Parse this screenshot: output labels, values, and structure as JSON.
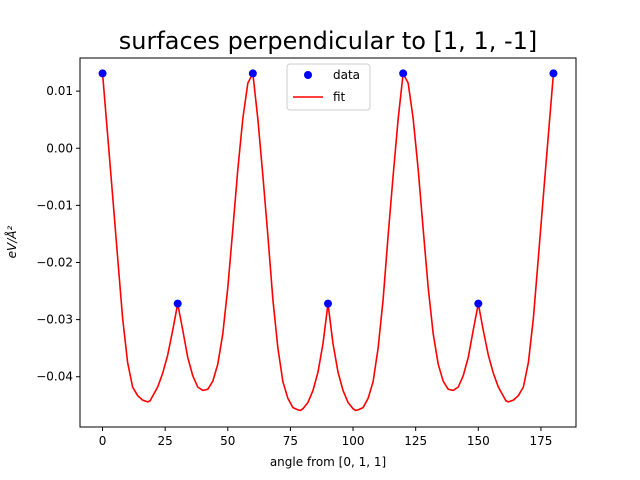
{
  "chart_data": {
    "type": "scatter",
    "title": "surfaces perpendicular to [1, 1, -1]",
    "xlabel": "angle from [0, 1, 1]",
    "ylabel": "eV/Å²",
    "xlim": [
      -9,
      189
    ],
    "ylim": [
      -0.0488,
      0.0158
    ],
    "xticks": [
      0,
      25,
      50,
      75,
      100,
      125,
      150,
      175
    ],
    "yticks": [
      0.01,
      0.0,
      -0.01,
      -0.02,
      -0.03,
      -0.04
    ],
    "ytick_labels": [
      "0.01",
      "0.00",
      "−0.01",
      "−0.02",
      "−0.03",
      "−0.04"
    ],
    "grid": false,
    "legend_position": "top-center",
    "series": [
      {
        "name": "data",
        "kind": "scatter",
        "color": "#0000ff",
        "x": [
          0,
          30,
          60,
          90,
          120,
          150,
          180
        ],
        "y": [
          0.0131,
          -0.0272,
          0.0131,
          -0.0272,
          0.0131,
          -0.0272,
          0.0131
        ]
      },
      {
        "name": "fit",
        "kind": "line",
        "color": "#ff0000",
        "x": [
          0,
          2,
          4,
          6,
          8,
          10,
          12,
          14,
          16,
          18,
          19,
          20,
          22,
          24,
          26,
          28,
          30,
          32,
          34,
          36,
          38,
          40,
          42,
          44,
          46,
          48,
          50,
          52,
          54,
          56,
          58,
          60,
          62,
          64,
          66,
          68,
          70,
          72,
          74,
          76,
          78,
          79,
          80,
          82,
          84,
          86,
          88,
          90,
          92,
          94,
          96,
          98,
          100,
          101,
          102,
          104,
          106,
          108,
          110,
          112,
          114,
          116,
          118,
          120,
          122,
          124,
          126,
          128,
          130,
          132,
          134,
          136,
          138,
          140,
          142,
          144,
          146,
          148,
          150,
          152,
          154,
          156,
          158,
          160,
          161,
          162,
          164,
          166,
          168,
          170,
          172,
          174,
          176,
          178,
          180
        ],
        "y": [
          0.0131,
          0.0025,
          -0.0082,
          -0.019,
          -0.0297,
          -0.0375,
          -0.0418,
          -0.0433,
          -0.0441,
          -0.0444,
          -0.0442,
          -0.0434,
          -0.0418,
          -0.0394,
          -0.0362,
          -0.0319,
          -0.0272,
          -0.0318,
          -0.0366,
          -0.0398,
          -0.0418,
          -0.0424,
          -0.0422,
          -0.0408,
          -0.0378,
          -0.0325,
          -0.0244,
          -0.0142,
          -0.0037,
          0.0052,
          0.0114,
          0.0131,
          0.0051,
          -0.0048,
          -0.0153,
          -0.0265,
          -0.035,
          -0.0409,
          -0.0438,
          -0.0454,
          -0.0458,
          -0.0459,
          -0.0456,
          -0.0445,
          -0.0424,
          -0.0392,
          -0.0342,
          -0.0272,
          -0.0342,
          -0.0392,
          -0.0424,
          -0.0445,
          -0.0456,
          -0.0459,
          -0.0458,
          -0.0454,
          -0.0438,
          -0.0409,
          -0.035,
          -0.0265,
          -0.0153,
          -0.0048,
          0.0051,
          0.0131,
          0.0114,
          0.0052,
          -0.0037,
          -0.0142,
          -0.0244,
          -0.0325,
          -0.0378,
          -0.0408,
          -0.0422,
          -0.0424,
          -0.0418,
          -0.0398,
          -0.0366,
          -0.0318,
          -0.0272,
          -0.0319,
          -0.0362,
          -0.0394,
          -0.0418,
          -0.0434,
          -0.0442,
          -0.0444,
          -0.0441,
          -0.0433,
          -0.0418,
          -0.0375,
          -0.0297,
          -0.019,
          -0.0082,
          0.0025,
          0.0131
        ]
      }
    ]
  }
}
